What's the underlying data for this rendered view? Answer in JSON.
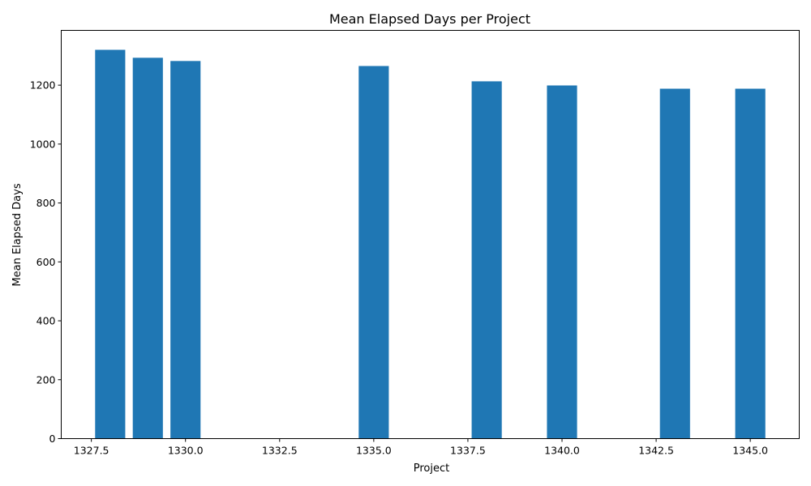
{
  "chart_data": {
    "type": "bar",
    "title": "Mean Elapsed Days per Project",
    "xlabel": "Project",
    "ylabel": "Mean Elapsed Days",
    "x": [
      1328,
      1329,
      1330,
      1335,
      1338,
      1340,
      1343,
      1345
    ],
    "values": [
      1320,
      1293,
      1282,
      1265,
      1213,
      1199,
      1188,
      1188
    ],
    "bar_width": 0.8,
    "xlim": [
      1326.7,
      1346.3
    ],
    "ylim": [
      0,
      1386
    ],
    "xticks": [
      1327.5,
      1330.0,
      1332.5,
      1335.0,
      1337.5,
      1340.0,
      1342.5,
      1345.0
    ],
    "xtick_labels": [
      "1327.5",
      "1330.0",
      "1332.5",
      "1335.0",
      "1337.5",
      "1340.0",
      "1342.5",
      "1345.0"
    ],
    "yticks": [
      0,
      200,
      400,
      600,
      800,
      1000,
      1200
    ],
    "ytick_labels": [
      "0",
      "200",
      "400",
      "600",
      "800",
      "1000",
      "1200"
    ],
    "bar_color": "#1f77b4",
    "grid": false,
    "legend": "none"
  }
}
